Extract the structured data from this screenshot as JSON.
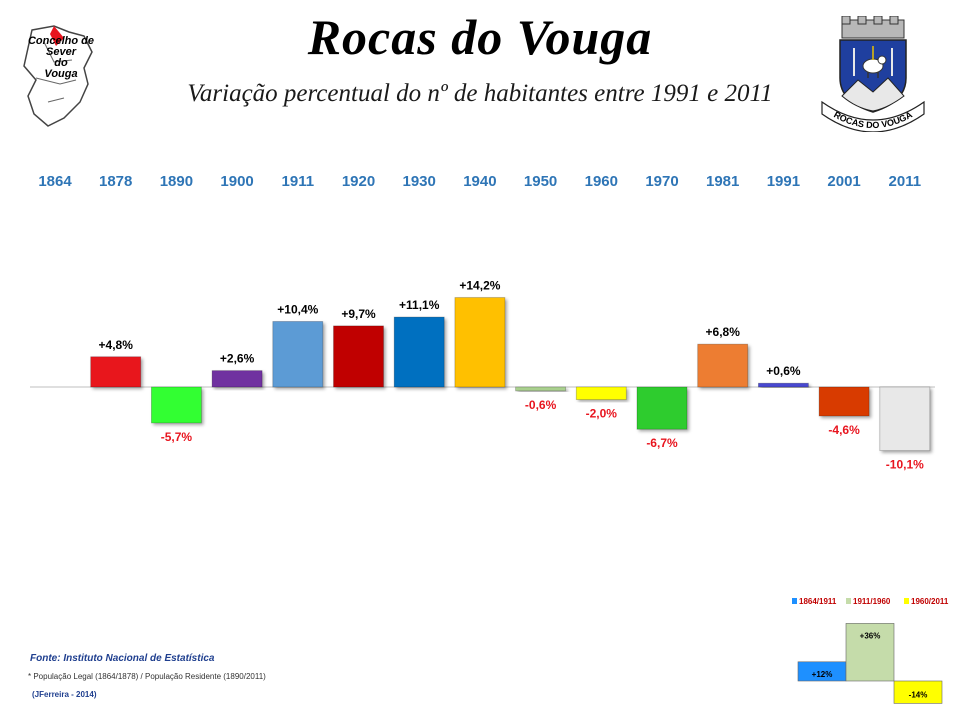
{
  "header": {
    "title": "Rocas do Vouga",
    "subtitle": "Variação percentual do nº de habitantes entre 1991 e 2011",
    "left_logo_text": "Concelho de\nSever\ndo\nVouga",
    "right_logo_text": "ROCAS DO VOUGA"
  },
  "chart_data": [
    {
      "type": "bar",
      "categories": [
        "1864",
        "1878",
        "1890",
        "1900",
        "1911",
        "1920",
        "1930",
        "1940",
        "1950",
        "1960",
        "1970",
        "1981",
        "1991",
        "2001",
        "2011"
      ],
      "values": [
        null,
        4.8,
        -5.7,
        2.6,
        10.4,
        9.7,
        11.1,
        14.2,
        -0.6,
        -2.0,
        -6.7,
        6.8,
        0.6,
        -4.6,
        -10.1
      ],
      "labels": [
        "",
        "+4,8%",
        "-5,7%",
        "+2,6%",
        "+10,4%",
        "+9,7%",
        "+11,1%",
        "+14,2%",
        "-0,6%",
        "-2,0%",
        "-6,7%",
        "+6,8%",
        "+0,6%",
        "-4,6%",
        "-10,1%"
      ],
      "colors": [
        "",
        "#e8141e",
        "#33ff33",
        "#7030a0",
        "#5b9bd5",
        "#c00000",
        "#0070c0",
        "#ffc000",
        "#a9d08e",
        "#ffff00",
        "#2dcc2d",
        "#ed7d31",
        "#4a4ad1",
        "#d83b01",
        "#e8e8e8"
      ],
      "label_colors": {
        "positive": "#000000",
        "negative": "#e8141e"
      },
      "xlabel": "",
      "ylabel": "",
      "grid": false
    },
    {
      "type": "bar",
      "categories": [
        "1864/1911",
        "1911/1960",
        "1960/2011"
      ],
      "values": [
        12,
        36,
        -14
      ],
      "labels": [
        "+12%",
        "+36%",
        "-14%"
      ],
      "colors": [
        "#1e90ff",
        "#c5dcaa",
        "#ffff00"
      ],
      "legend": "top"
    }
  ],
  "footer": {
    "source": "Fonte: Instituto Nacional de Estatística",
    "note": "* População Legal (1864/1878) / População Residente (1890/2011)",
    "author": "(JFerreira - 2014)"
  }
}
